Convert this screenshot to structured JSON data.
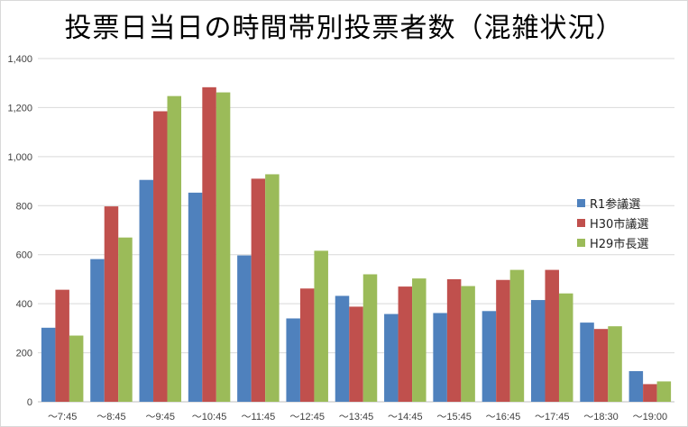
{
  "chart_data": {
    "type": "bar",
    "title": "投票日当日の時間帯別投票者数（混雑状況）",
    "categories": [
      "～7:45",
      "～8:45",
      "～9:45",
      "～10:45",
      "～11:45",
      "～12:45",
      "～13:45",
      "～14:45",
      "～15:45",
      "～16:45",
      "～17:45",
      "～18:30",
      "～19:00"
    ],
    "series": [
      {
        "name": "R1参議選",
        "color": "#4f81bd",
        "values": [
          302,
          582,
          905,
          853,
          597,
          340,
          432,
          358,
          362,
          370,
          415,
          323,
          125
        ]
      },
      {
        "name": "H30市議選",
        "color": "#c0504d",
        "values": [
          457,
          797,
          1185,
          1283,
          910,
          462,
          388,
          470,
          500,
          497,
          538,
          297,
          72
        ]
      },
      {
        "name": "H29市長選",
        "color": "#9bbb59",
        "values": [
          270,
          670,
          1247,
          1262,
          928,
          616,
          520,
          503,
          472,
          538,
          442,
          308,
          83
        ]
      }
    ],
    "yticks": [
      0,
      200,
      400,
      600,
      800,
      1000,
      1200,
      1400
    ],
    "ytick_labels": [
      "0",
      "200",
      "400",
      "600",
      "800",
      "1,000",
      "1,200",
      "1,400"
    ],
    "ylim": [
      0,
      1400
    ],
    "grid": true,
    "legend_position": "right"
  }
}
